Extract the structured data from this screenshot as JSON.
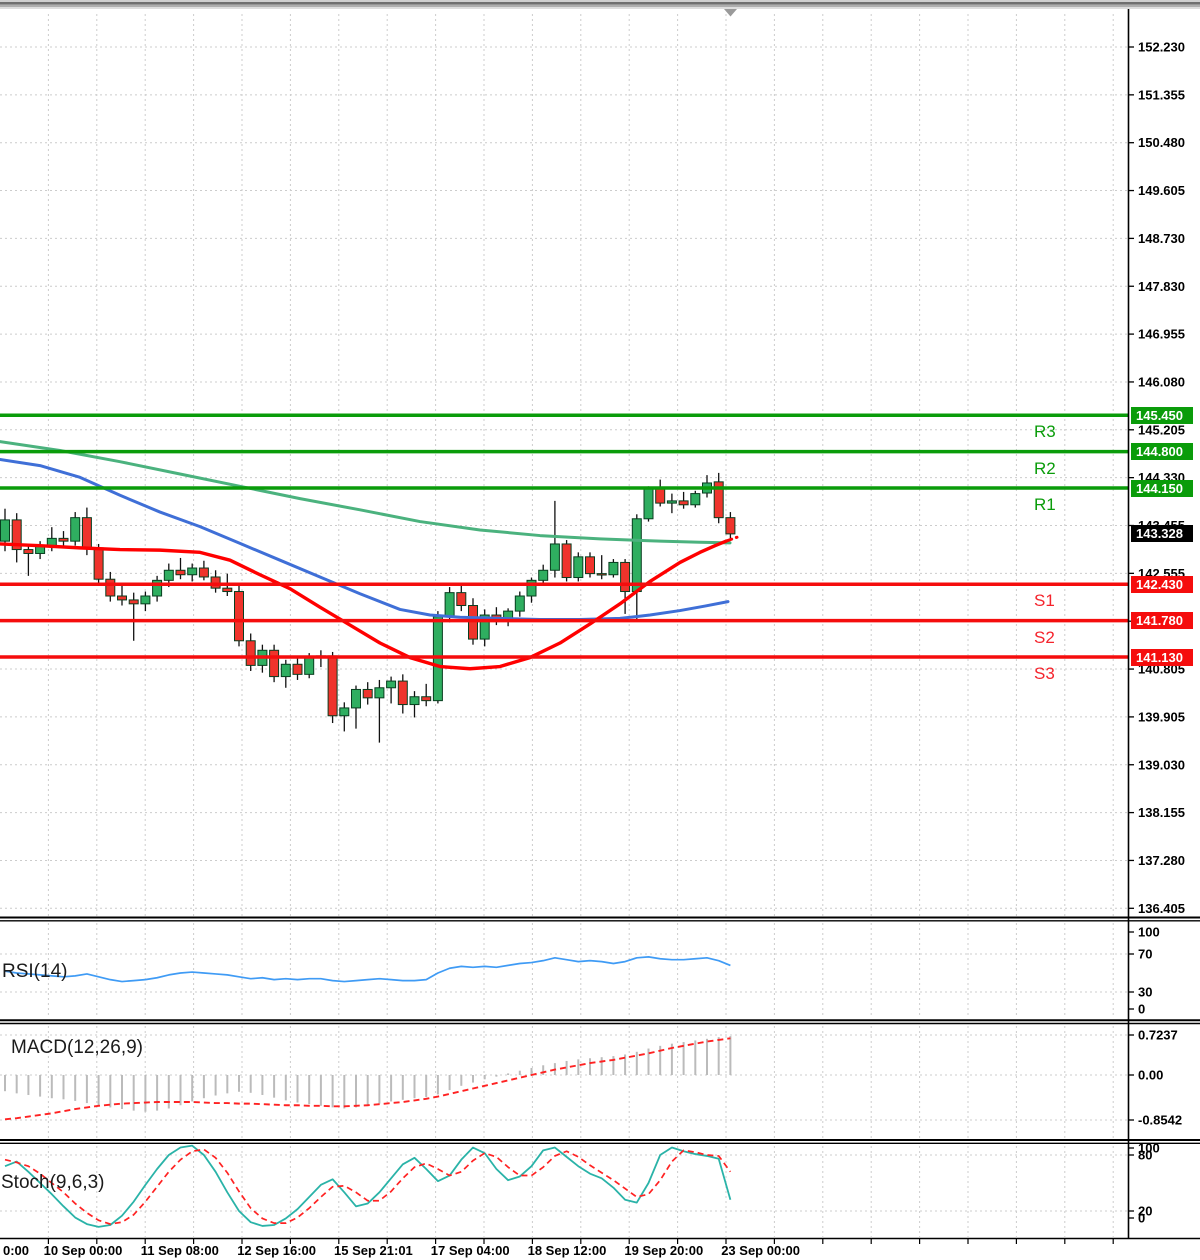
{
  "colors": {
    "bull_body": "#2fae60",
    "bear_body": "#ef342c",
    "wick": "#111111",
    "candle_outline": "#083d1f",
    "ma_fast": "#ff0000",
    "ma_mid": "#3f6fd7",
    "ma_slow": "#4bb27e",
    "resistance": "#0a9c0a",
    "support": "#f50d0d",
    "rsi_line": "#3f9bf5",
    "macd_hist": "#bbbbbb",
    "signal_line": "#ff2222",
    "stoch_k": "#2ab3a8",
    "stoch_d": "#ff2222",
    "grid": "#cccccc",
    "axis_text": "#000000",
    "tag_current_bg": "#000000"
  },
  "top_bar": {
    "marker_icon": "down-triangle"
  },
  "chart_data": [
    {
      "type": "candlestick",
      "title": "",
      "y_tick_labels": [
        "152.230",
        "151.355",
        "150.480",
        "149.605",
        "148.730",
        "147.830",
        "146.955",
        "146.080",
        "145.205",
        "144.330",
        "143.455",
        "142.555",
        "141.680",
        "140.805",
        "139.905",
        "139.030",
        "138.155",
        "137.280",
        "136.405"
      ],
      "x_tick_labels": [
        "0:00",
        "10 Sep 00:00",
        "11 Sep 08:00",
        "12 Sep 16:00",
        "15 Sep 21:01",
        "17 Sep 04:00",
        "18 Sep 12:00",
        "19 Sep 20:00",
        "23 Sep 00:00"
      ],
      "current_price_tag": "143.328",
      "current_price": 143.328,
      "levels": [
        {
          "label": "R3",
          "price": 145.45,
          "tag": "145.450",
          "kind": "resistance"
        },
        {
          "label": "R2",
          "price": 144.8,
          "tag": "144.800",
          "kind": "resistance"
        },
        {
          "label": "R1",
          "price": 144.15,
          "tag": "144.150",
          "kind": "resistance"
        },
        {
          "label": "S1",
          "price": 142.43,
          "tag": "142.430",
          "kind": "support"
        },
        {
          "label": "S2",
          "price": 141.78,
          "tag": "141.780",
          "kind": "support"
        },
        {
          "label": "S3",
          "price": 141.13,
          "tag": "141.130",
          "kind": "support"
        }
      ],
      "ohlc": [
        [
          143.2,
          143.78,
          143.02,
          143.58
        ],
        [
          143.58,
          143.7,
          142.82,
          143.05
        ],
        [
          143.05,
          143.15,
          142.58,
          142.98
        ],
        [
          142.98,
          143.2,
          142.88,
          143.12
        ],
        [
          143.12,
          143.45,
          143.02,
          143.25
        ],
        [
          143.25,
          143.38,
          143.1,
          143.2
        ],
        [
          143.2,
          143.72,
          143.12,
          143.62
        ],
        [
          143.62,
          143.8,
          142.95,
          143.08
        ],
        [
          143.08,
          143.15,
          142.4,
          142.52
        ],
        [
          142.52,
          142.65,
          142.12,
          142.22
        ],
        [
          142.22,
          142.4,
          142.05,
          142.15
        ],
        [
          142.15,
          142.28,
          141.42,
          142.08
        ],
        [
          142.08,
          142.3,
          141.95,
          142.22
        ],
        [
          142.22,
          142.58,
          142.12,
          142.5
        ],
        [
          142.5,
          142.8,
          142.38,
          142.68
        ],
        [
          142.68,
          142.9,
          142.52,
          142.6
        ],
        [
          142.6,
          142.8,
          142.48,
          142.72
        ],
        [
          142.72,
          142.85,
          142.5,
          142.56
        ],
        [
          142.56,
          142.68,
          142.28,
          142.36
        ],
        [
          142.36,
          142.62,
          142.22,
          142.3
        ],
        [
          142.3,
          142.4,
          141.32,
          141.42
        ],
        [
          141.42,
          141.55,
          140.88,
          140.98
        ],
        [
          140.98,
          141.35,
          140.85,
          141.25
        ],
        [
          141.25,
          141.35,
          140.68,
          140.78
        ],
        [
          140.78,
          141.08,
          140.58,
          141.0
        ],
        [
          141.0,
          141.12,
          140.72,
          140.82
        ],
        [
          140.82,
          141.2,
          140.75,
          141.12
        ],
        [
          141.12,
          141.25,
          140.95,
          141.15
        ],
        [
          141.15,
          141.22,
          139.95,
          140.08
        ],
        [
          140.08,
          140.32,
          139.8,
          140.22
        ],
        [
          140.22,
          140.62,
          139.85,
          140.55
        ],
        [
          140.55,
          140.68,
          140.28,
          140.4
        ],
        [
          140.4,
          140.72,
          139.6,
          140.58
        ],
        [
          140.58,
          140.78,
          140.3,
          140.7
        ],
        [
          140.7,
          140.82,
          140.12,
          140.28
        ],
        [
          140.28,
          140.52,
          140.05,
          140.42
        ],
        [
          140.42,
          140.65,
          140.25,
          140.35
        ],
        [
          140.35,
          141.95,
          140.3,
          141.85
        ],
        [
          141.85,
          142.38,
          141.75,
          142.28
        ],
        [
          142.28,
          142.45,
          141.95,
          142.05
        ],
        [
          142.05,
          142.18,
          141.35,
          141.45
        ],
        [
          141.45,
          141.98,
          141.32,
          141.88
        ],
        [
          141.88,
          142.02,
          141.7,
          141.78
        ],
        [
          141.78,
          142.0,
          141.68,
          141.95
        ],
        [
          141.95,
          142.3,
          141.85,
          142.22
        ],
        [
          142.22,
          142.55,
          142.1,
          142.5
        ],
        [
          142.5,
          142.78,
          142.4,
          142.68
        ],
        [
          142.68,
          143.92,
          142.55,
          143.15
        ],
        [
          143.15,
          143.22,
          142.48,
          142.55
        ],
        [
          142.55,
          143.0,
          142.48,
          142.92
        ],
        [
          142.92,
          143.0,
          142.55,
          142.62
        ],
        [
          142.62,
          142.95,
          142.52,
          142.6
        ],
        [
          142.6,
          142.88,
          142.55,
          142.82
        ],
        [
          142.82,
          142.88,
          141.9,
          142.3
        ],
        [
          142.3,
          143.68,
          141.78,
          143.6
        ],
        [
          143.6,
          144.18,
          143.55,
          144.15
        ],
        [
          144.15,
          144.3,
          143.82,
          143.88
        ],
        [
          143.88,
          144.05,
          143.7,
          143.92
        ],
        [
          143.92,
          144.08,
          143.78,
          143.85
        ],
        [
          143.85,
          144.1,
          143.8,
          144.05
        ],
        [
          144.06,
          144.38,
          143.98,
          144.24
        ],
        [
          144.26,
          144.42,
          143.52,
          143.62
        ],
        [
          143.62,
          143.72,
          143.25,
          143.33
        ]
      ],
      "overlays": [
        {
          "name": "ma-slow-green",
          "color_key": "ma_slow",
          "width": 3,
          "points": [
            [
              0,
              144.98
            ],
            [
              60,
              144.82
            ],
            [
              120,
              144.62
            ],
            [
              180,
              144.4
            ],
            [
              240,
              144.18
            ],
            [
              300,
              143.96
            ],
            [
              360,
              143.76
            ],
            [
              420,
              143.55
            ],
            [
              480,
              143.4
            ],
            [
              540,
              143.3
            ],
            [
              600,
              143.24
            ],
            [
              660,
              143.2
            ],
            [
              700,
              143.18
            ],
            [
              730,
              143.17
            ]
          ]
        },
        {
          "name": "ma-mid-blue",
          "color_key": "ma_mid",
          "width": 3,
          "points": [
            [
              0,
              144.66
            ],
            [
              40,
              144.55
            ],
            [
              80,
              144.34
            ],
            [
              120,
              144.02
            ],
            [
              160,
              143.72
            ],
            [
              200,
              143.46
            ],
            [
              240,
              143.16
            ],
            [
              280,
              142.86
            ],
            [
              320,
              142.56
            ],
            [
              360,
              142.26
            ],
            [
              400,
              141.98
            ],
            [
              430,
              141.88
            ],
            [
              460,
              141.84
            ],
            [
              500,
              141.82
            ],
            [
              540,
              141.8
            ],
            [
              580,
              141.8
            ],
            [
              620,
              141.82
            ],
            [
              650,
              141.88
            ],
            [
              680,
              141.96
            ],
            [
              705,
              142.04
            ],
            [
              728,
              142.12
            ]
          ]
        },
        {
          "name": "ma-fast-red",
          "color_key": "ma_fast",
          "width": 3.4,
          "points": [
            [
              0,
              143.15
            ],
            [
              40,
              143.12
            ],
            [
              80,
              143.08
            ],
            [
              120,
              143.05
            ],
            [
              160,
              143.04
            ],
            [
              200,
              143.0
            ],
            [
              230,
              142.86
            ],
            [
              260,
              142.6
            ],
            [
              290,
              142.35
            ],
            [
              320,
              142.02
            ],
            [
              350,
              141.7
            ],
            [
              380,
              141.38
            ],
            [
              410,
              141.12
            ],
            [
              440,
              140.96
            ],
            [
              470,
              140.92
            ],
            [
              500,
              140.96
            ],
            [
              530,
              141.12
            ],
            [
              560,
              141.38
            ],
            [
              590,
              141.72
            ],
            [
              620,
              142.08
            ],
            [
              650,
              142.48
            ],
            [
              680,
              142.82
            ],
            [
              700,
              143.0
            ],
            [
              715,
              143.12
            ],
            [
              726,
              143.2
            ]
          ]
        },
        {
          "name": "ma-fast-red-projection",
          "color_key": "ma_fast",
          "width": 3,
          "dash": "6,5",
          "points": [
            [
              726,
              143.2
            ],
            [
              737,
              143.27
            ]
          ]
        }
      ]
    },
    {
      "type": "line",
      "title": "RSI(14)",
      "scale_labels": [
        "100",
        "70",
        "30",
        "0"
      ],
      "range": [
        0,
        100
      ],
      "values": [
        52,
        50,
        49,
        48,
        47,
        46,
        47,
        49,
        46,
        43,
        41,
        42,
        43,
        45,
        48,
        50,
        51,
        50,
        49,
        48,
        46,
        44,
        45,
        43,
        44,
        43,
        44,
        44,
        42,
        41,
        42,
        43,
        44,
        43,
        42,
        42,
        43,
        50,
        55,
        57,
        56,
        57,
        56,
        58,
        60,
        61,
        63,
        66,
        64,
        62,
        63,
        62,
        60,
        62,
        66,
        67,
        65,
        64,
        64,
        65,
        66,
        63,
        58
      ]
    },
    {
      "type": "bar",
      "title": "MACD(12,26,9)",
      "scale_labels": [
        "0.7237",
        "0.00",
        "-0.8542"
      ],
      "histogram": [
        -0.3,
        -0.34,
        -0.37,
        -0.4,
        -0.43,
        -0.45,
        -0.48,
        -0.52,
        -0.56,
        -0.6,
        -0.63,
        -0.66,
        -0.68,
        -0.66,
        -0.62,
        -0.56,
        -0.49,
        -0.43,
        -0.38,
        -0.34,
        -0.31,
        -0.33,
        -0.37,
        -0.42,
        -0.47,
        -0.51,
        -0.54,
        -0.57,
        -0.6,
        -0.62,
        -0.6,
        -0.57,
        -0.53,
        -0.49,
        -0.46,
        -0.43,
        -0.41,
        -0.36,
        -0.28,
        -0.2,
        -0.14,
        -0.08,
        -0.03,
        0.03,
        0.08,
        0.13,
        0.18,
        0.22,
        0.26,
        0.29,
        0.31,
        0.33,
        0.35,
        0.38,
        0.43,
        0.49,
        0.54,
        0.58,
        0.61,
        0.64,
        0.67,
        0.7,
        0.72
      ],
      "signal": [
        -0.82,
        -0.8,
        -0.77,
        -0.74,
        -0.71,
        -0.67,
        -0.63,
        -0.6,
        -0.57,
        -0.55,
        -0.53,
        -0.52,
        -0.51,
        -0.5,
        -0.5,
        -0.5,
        -0.5,
        -0.51,
        -0.52,
        -0.52,
        -0.53,
        -0.53,
        -0.54,
        -0.55,
        -0.56,
        -0.56,
        -0.57,
        -0.57,
        -0.58,
        -0.58,
        -0.57,
        -0.56,
        -0.54,
        -0.52,
        -0.5,
        -0.47,
        -0.44,
        -0.4,
        -0.35,
        -0.3,
        -0.25,
        -0.2,
        -0.15,
        -0.1,
        -0.05,
        0.0,
        0.05,
        0.1,
        0.14,
        0.18,
        0.22,
        0.25,
        0.28,
        0.32,
        0.36,
        0.4,
        0.45,
        0.5,
        0.54,
        0.58,
        0.62,
        0.65,
        0.68
      ]
    },
    {
      "type": "line",
      "title": "Stoch(9,6,3)",
      "scale_labels": [
        "100",
        "80",
        "20",
        "0"
      ],
      "range": [
        0,
        100
      ],
      "k_values": [
        68,
        73,
        62,
        50,
        38,
        25,
        13,
        6,
        3,
        5,
        15,
        30,
        48,
        65,
        80,
        88,
        90,
        80,
        62,
        40,
        20,
        8,
        4,
        5,
        12,
        22,
        35,
        48,
        54,
        40,
        25,
        28,
        40,
        55,
        70,
        77,
        65,
        52,
        58,
        75,
        88,
        82,
        65,
        53,
        57,
        68,
        85,
        88,
        78,
        68,
        60,
        55,
        45,
        32,
        29,
        50,
        80,
        88,
        84,
        81,
        79,
        76,
        32
      ],
      "d_values": [
        75,
        72,
        68,
        60,
        50,
        40,
        28,
        18,
        10,
        6,
        8,
        16,
        30,
        46,
        62,
        75,
        84,
        86,
        77,
        61,
        41,
        23,
        12,
        7,
        7,
        13,
        23,
        35,
        46,
        47,
        40,
        31,
        31,
        41,
        55,
        67,
        71,
        65,
        58,
        62,
        74,
        82,
        78,
        67,
        58,
        58,
        67,
        79,
        84,
        78,
        69,
        61,
        53,
        44,
        35,
        38,
        53,
        73,
        85,
        83,
        80,
        79,
        62
      ]
    }
  ]
}
